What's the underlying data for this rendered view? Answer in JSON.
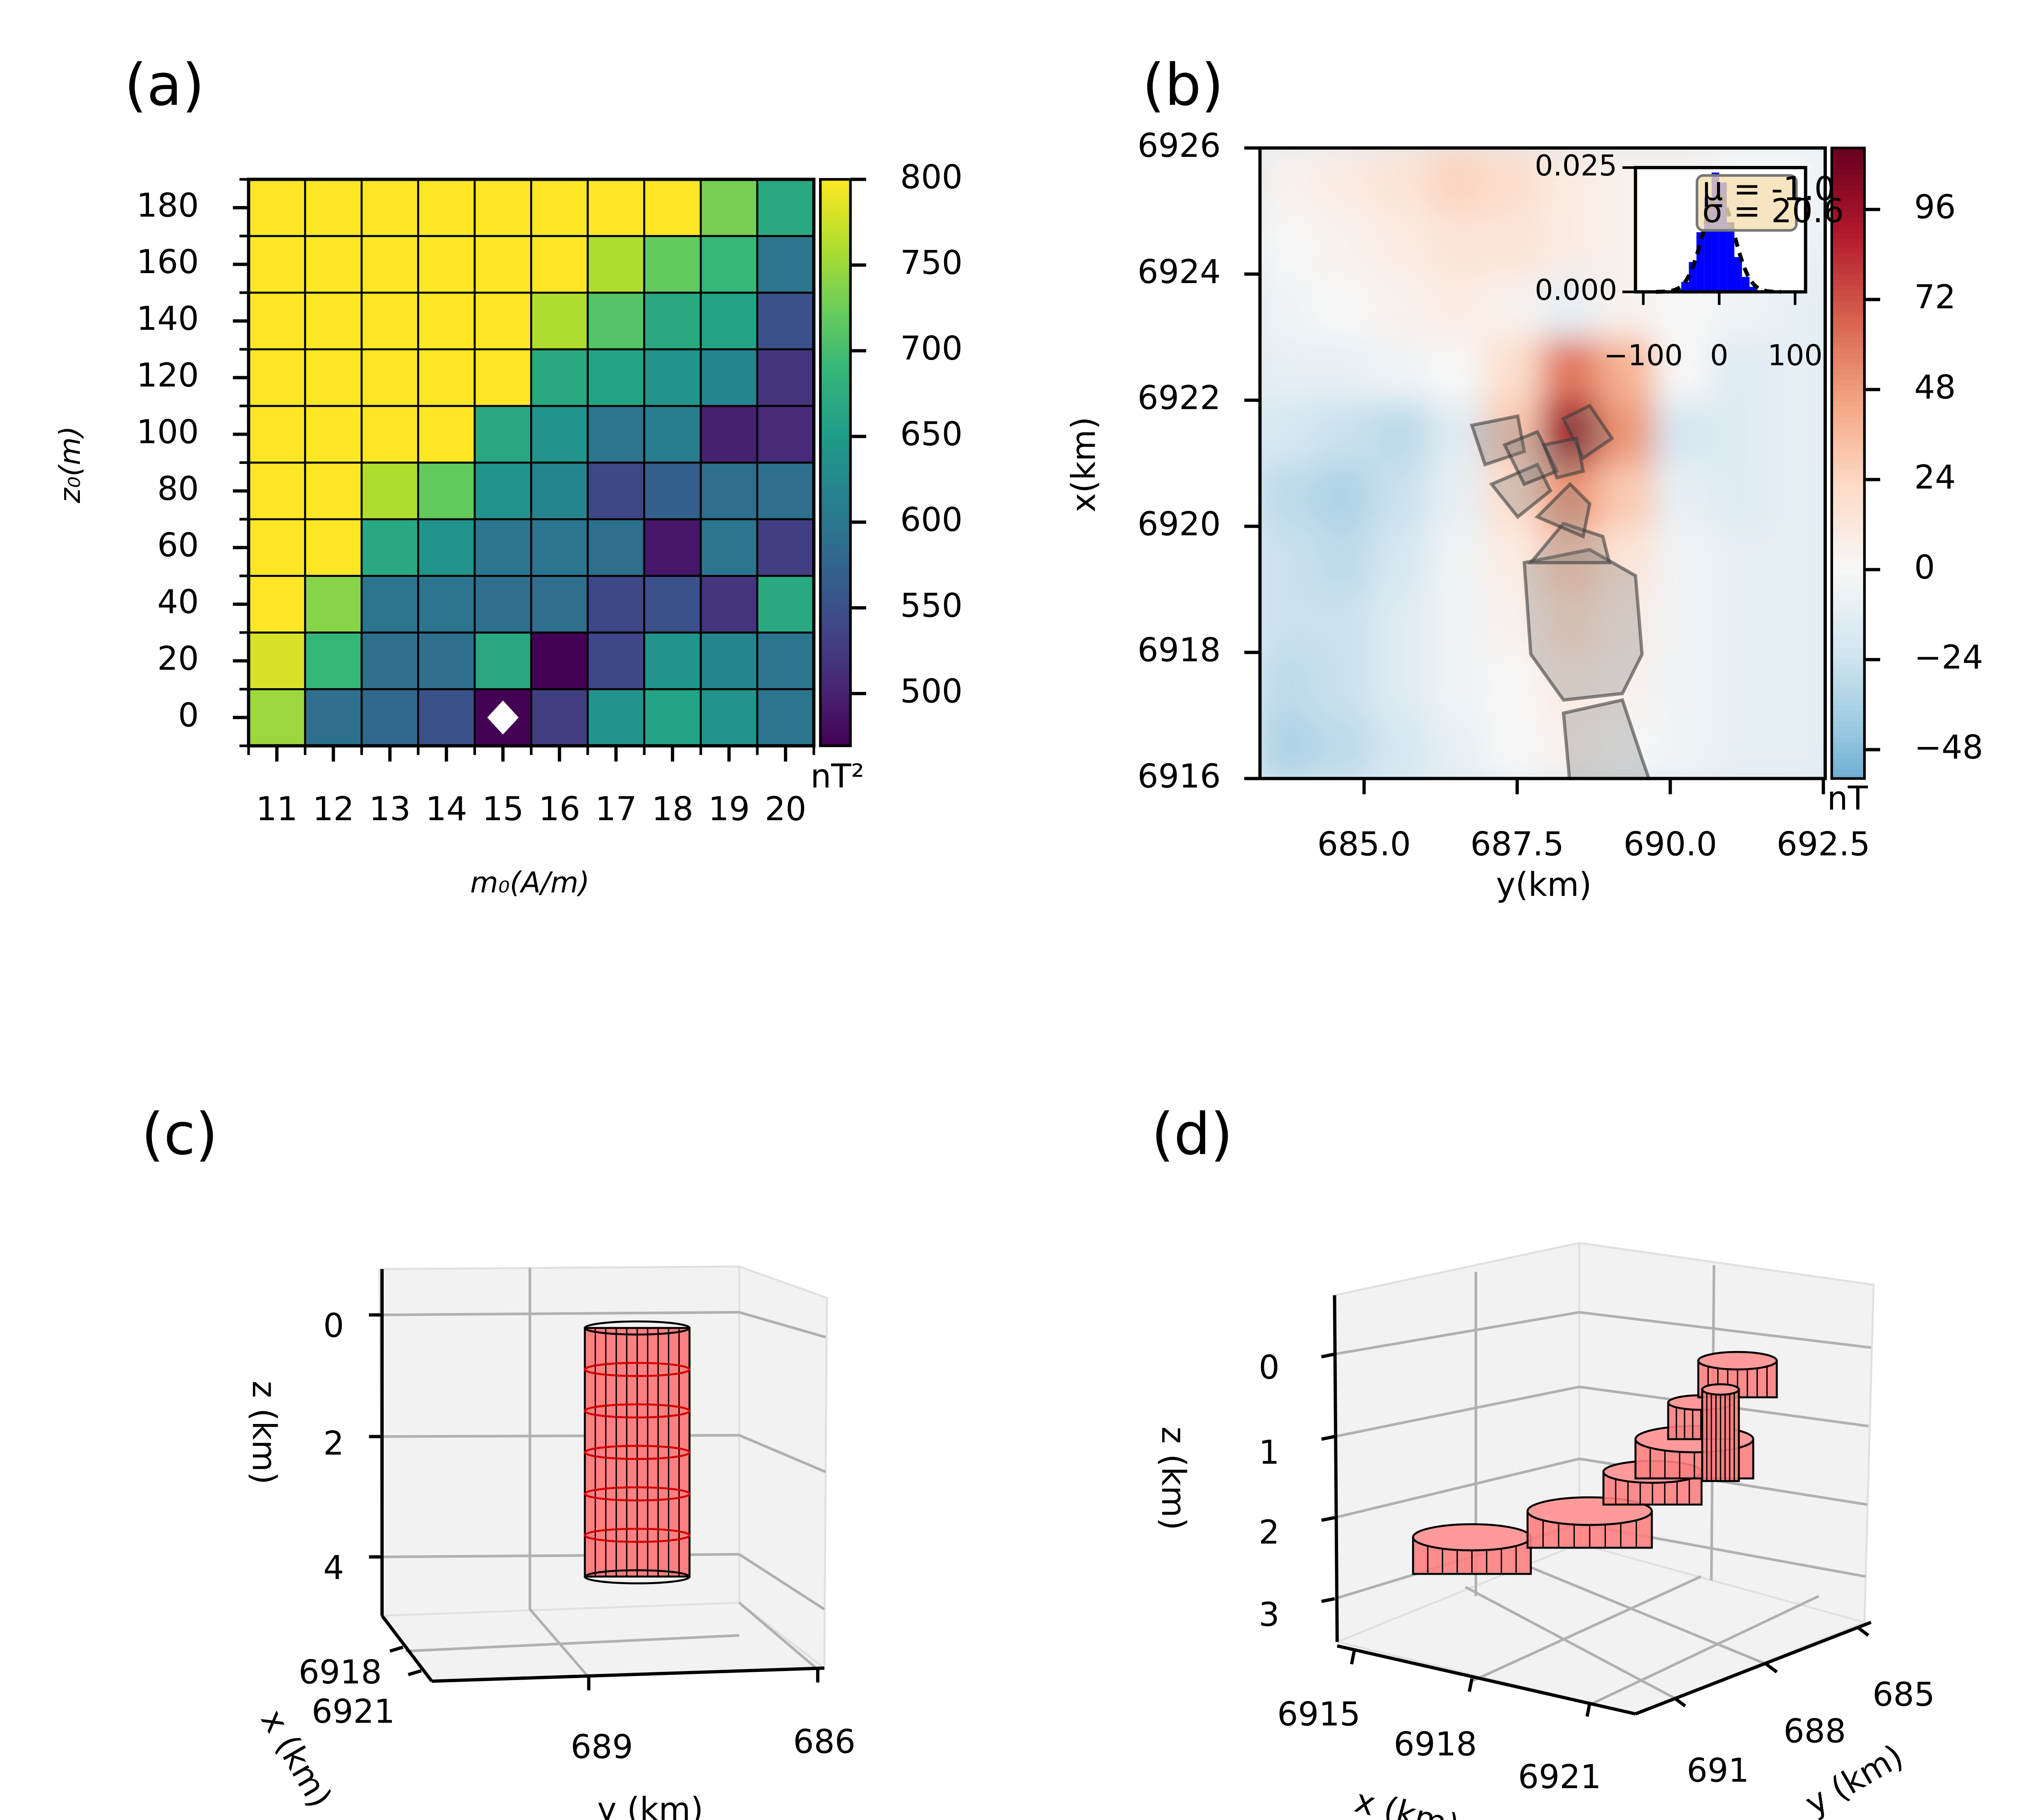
{
  "chart_data": [
    {
      "type": "heatmap",
      "panel_label": "(a)",
      "x_label": "m₀(A/m)",
      "y_label": "z₀(m)",
      "x": [
        11,
        12,
        13,
        14,
        15,
        16,
        17,
        18,
        19,
        20
      ],
      "y": [
        0,
        20,
        40,
        60,
        80,
        100,
        120,
        140,
        160,
        180
      ],
      "xlim": [
        10.5,
        20.5
      ],
      "ylim": [
        -10,
        190
      ],
      "xticks": [
        11,
        12,
        13,
        14,
        15,
        16,
        17,
        18,
        19,
        20
      ],
      "yticks": [
        0,
        20,
        40,
        60,
        80,
        100,
        120,
        140,
        160,
        180
      ],
      "values": [
        [
          750,
          590,
          580,
          550,
          470,
          530,
          640,
          660,
          640,
          600
        ],
        [
          780,
          690,
          590,
          590,
          670,
          470,
          540,
          640,
          620,
          600
        ],
        [
          800,
          740,
          600,
          600,
          590,
          590,
          540,
          550,
          520,
          670
        ],
        [
          800,
          800,
          670,
          640,
          600,
          600,
          590,
          490,
          600,
          530
        ],
        [
          800,
          800,
          760,
          720,
          640,
          620,
          540,
          570,
          590,
          590
        ],
        [
          800,
          800,
          800,
          800,
          670,
          640,
          600,
          610,
          500,
          510
        ],
        [
          800,
          800,
          800,
          800,
          800,
          670,
          660,
          640,
          620,
          520
        ],
        [
          800,
          800,
          800,
          800,
          800,
          760,
          710,
          670,
          660,
          550
        ],
        [
          800,
          800,
          800,
          800,
          800,
          800,
          760,
          720,
          690,
          600
        ],
        [
          800,
          800,
          800,
          800,
          800,
          800,
          800,
          800,
          730,
          670
        ]
      ],
      "colormap": "viridis",
      "colorbar": {
        "label": "nT²",
        "lim": [
          469.5,
          800
        ],
        "ticks": [
          500,
          550,
          600,
          650,
          700,
          750,
          800
        ]
      },
      "marker": {
        "x": 15,
        "y": 0,
        "color": "#ffffff"
      }
    },
    {
      "type": "contour",
      "panel_label": "(b)",
      "x_label": "y(km)",
      "y_label": "x(km)",
      "xlim": [
        683.3,
        692.53
      ],
      "ylim": [
        6916,
        6926
      ],
      "xticks": [
        {
          "value": 685,
          "label": "685.0"
        },
        {
          "value": 687.5,
          "label": "687.5"
        },
        {
          "value": 690,
          "label": "690.0"
        },
        {
          "value": 692.5,
          "label": "692.5"
        }
      ],
      "yticks": [
        6916,
        6918,
        6920,
        6922,
        6924,
        6926
      ],
      "z": [
        [
          -35,
          -30,
          -20,
          -10,
          0,
          5,
          0,
          -5,
          -10,
          -10
        ],
        [
          -30,
          -25,
          -15,
          -5,
          0,
          10,
          5,
          -5,
          -10,
          -10
        ],
        [
          -25,
          -25,
          -15,
          -5,
          5,
          20,
          10,
          -5,
          -10,
          -10
        ],
        [
          -25,
          -30,
          -20,
          -5,
          10,
          30,
          15,
          -5,
          -10,
          -10
        ],
        [
          -30,
          -35,
          -25,
          -10,
          20,
          50,
          30,
          -10,
          -15,
          -10
        ],
        [
          -20,
          -25,
          -30,
          -15,
          30,
          95,
          50,
          -20,
          -15,
          -10
        ],
        [
          -10,
          -10,
          -5,
          0,
          20,
          60,
          40,
          0,
          -15,
          -10
        ],
        [
          -5,
          0,
          5,
          10,
          5,
          -10,
          5,
          0,
          -5,
          -10
        ],
        [
          0,
          5,
          10,
          15,
          15,
          10,
          5,
          0,
          0,
          -5
        ],
        [
          5,
          10,
          15,
          25,
          20,
          10,
          5,
          5,
          0,
          0
        ]
      ],
      "colormap": "RdBu_r",
      "colorbar": {
        "label": "nT",
        "lim": [
          -55.7,
          112.4
        ],
        "ticks": [
          {
            "value": -48,
            "label": "−48"
          },
          {
            "value": -24,
            "label": "−24"
          },
          0,
          24,
          48,
          72,
          96
        ]
      },
      "inset": {
        "type": "histogram",
        "color": "#0000ff",
        "bins": [
          -60,
          -50,
          -40,
          -30,
          -20,
          -10,
          0,
          10,
          20,
          30,
          40,
          50,
          60
        ],
        "values": [
          0.0005,
          0.002,
          0.006,
          0.012,
          0.019,
          0.024,
          0.022,
          0.014,
          0.007,
          0.003,
          0.001,
          0.0003
        ],
        "xlim": [
          -110.3,
          113.8
        ],
        "ylim": [
          0,
          0.025
        ],
        "xticks": [
          {
            "value": -100,
            "label": "−100"
          },
          0,
          100
        ],
        "yticks": [
          {
            "value": 0,
            "label": "0.000"
          },
          {
            "value": 0.025,
            "label": "0.025"
          }
        ],
        "fit": {
          "mean": -1.0,
          "std": 20.6
        },
        "annotations": [
          "μ = -1.0",
          "σ = 20.6"
        ]
      }
    },
    {
      "type": "3d",
      "panel_label": "(c)",
      "x_label": "x (km)",
      "y_label": "y (km)",
      "z_label": "z (km)",
      "xticks": [
        6918,
        6921
      ],
      "yticks": [
        689,
        686
      ],
      "zticks": [
        0,
        2,
        4
      ]
    },
    {
      "type": "3d",
      "panel_label": "(d)",
      "x_label": "x (km)",
      "y_label": "y (km)",
      "z_label": "z (km)",
      "xticks": [
        6915,
        6918,
        6921
      ],
      "yticks": [
        685,
        688,
        691
      ],
      "zticks": [
        0,
        1,
        2,
        3
      ]
    }
  ]
}
